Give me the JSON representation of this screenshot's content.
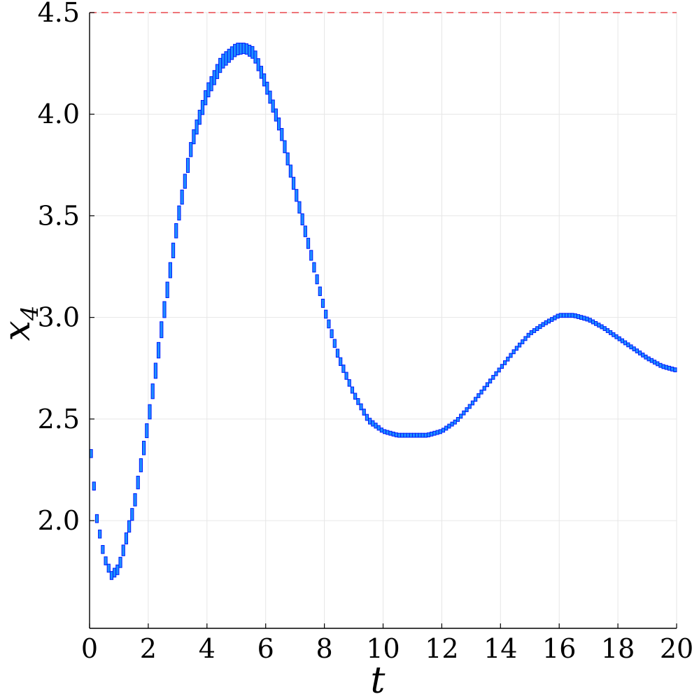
{
  "chart_data": {
    "type": "line",
    "xlabel": "t",
    "ylabel": {
      "base": "x",
      "sub": "4"
    },
    "xlim": [
      0,
      20
    ],
    "ylim": [
      1.47,
      4.5
    ],
    "grid": true,
    "legend": "none",
    "x_ticks": [
      0,
      2,
      4,
      6,
      8,
      10,
      12,
      14,
      16,
      18,
      20
    ],
    "y_ticks": [
      "2.0",
      "2.5",
      "3.0",
      "3.5",
      "4.0",
      "4.5"
    ],
    "reference_line": {
      "y": 4.5,
      "color": "#e8474c",
      "style": "dashed"
    },
    "series": [
      {
        "style": "interval-boxes",
        "fill_color": "#1e90ff",
        "edge_color": "#0018ff",
        "x": [
          0,
          0.25,
          0.5,
          0.75,
          1,
          1.5,
          2,
          2.5,
          3,
          3.5,
          4,
          4.5,
          5,
          5.3,
          5.6,
          6,
          6.5,
          7,
          7.5,
          8,
          8.5,
          9,
          9.5,
          10,
          10.5,
          11,
          11.5,
          12,
          12.5,
          13,
          13.5,
          14,
          14.5,
          15,
          15.5,
          16,
          16.5,
          17,
          17.5,
          18,
          18.5,
          19,
          19.5,
          20
        ],
        "y_low": [
          2.39,
          1.99,
          1.8,
          1.71,
          1.74,
          2.03,
          2.45,
          2.95,
          3.44,
          3.83,
          4.07,
          4.22,
          4.29,
          4.3,
          4.27,
          4.12,
          3.9,
          3.6,
          3.31,
          3.02,
          2.78,
          2.61,
          2.48,
          2.43,
          2.41,
          2.41,
          2.41,
          2.43,
          2.48,
          2.56,
          2.65,
          2.74,
          2.83,
          2.91,
          2.96,
          3.0,
          3.0,
          2.98,
          2.94,
          2.89,
          2.84,
          2.79,
          2.75,
          2.73
        ],
        "y_high": [
          2.43,
          2.03,
          1.84,
          1.75,
          1.79,
          2.09,
          2.52,
          3.03,
          3.51,
          3.9,
          4.14,
          4.29,
          4.35,
          4.35,
          4.33,
          4.18,
          3.96,
          3.66,
          3.36,
          3.06,
          2.82,
          2.64,
          2.51,
          2.45,
          2.43,
          2.43,
          2.43,
          2.45,
          2.5,
          2.58,
          2.67,
          2.76,
          2.85,
          2.93,
          2.98,
          3.02,
          3.02,
          3.0,
          2.96,
          2.91,
          2.86,
          2.81,
          2.77,
          2.75
        ]
      }
    ]
  }
}
